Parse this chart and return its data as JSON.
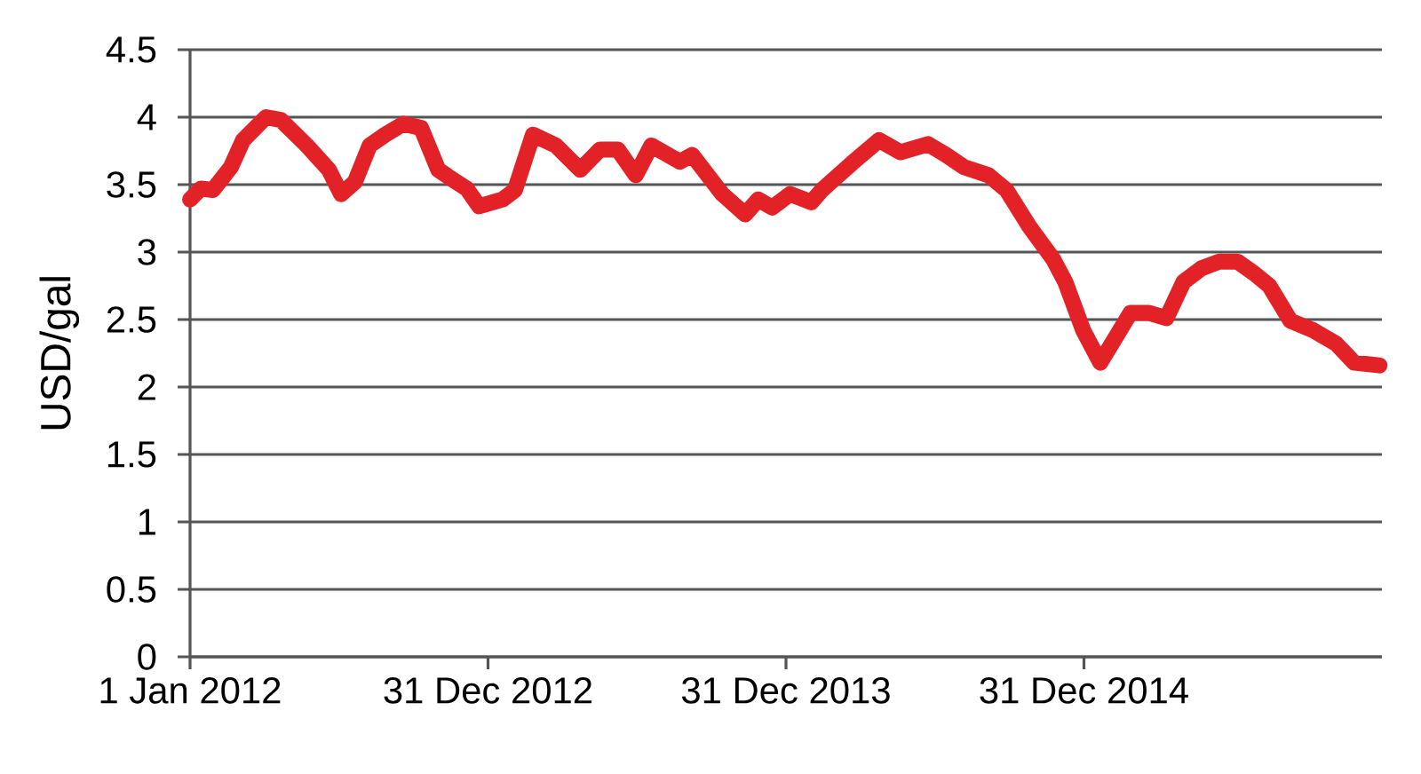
{
  "chart_data": {
    "type": "line",
    "ylabel": "USD/gal",
    "x": [
      "2012-01-01",
      "2012-01-14",
      "2012-01-29",
      "2012-02-20",
      "2012-03-06",
      "2012-04-03",
      "2012-04-21",
      "2012-05-23",
      "2012-06-19",
      "2012-07-04",
      "2012-07-21",
      "2012-08-08",
      "2012-08-27",
      "2012-09-18",
      "2012-10-10",
      "2012-10-31",
      "2012-11-22",
      "2012-12-05",
      "2012-12-20",
      "2013-01-18",
      "2013-02-02",
      "2013-02-24",
      "2013-03-24",
      "2013-04-23",
      "2013-05-17",
      "2013-06-08",
      "2013-06-30",
      "2013-07-19",
      "2013-08-23",
      "2013-09-07",
      "2013-10-14",
      "2013-11-11",
      "2013-11-27",
      "2013-12-14",
      "2014-01-05",
      "2014-01-31",
      "2014-02-13",
      "2014-03-22",
      "2014-04-24",
      "2014-05-20",
      "2014-06-23",
      "2014-07-15",
      "2014-08-06",
      "2014-09-05",
      "2014-09-27",
      "2014-10-25",
      "2014-11-23",
      "2014-12-08",
      "2014-12-30",
      "2015-01-20",
      "2015-02-26",
      "2015-03-20",
      "2015-04-11",
      "2015-05-02",
      "2015-05-24",
      "2015-06-15",
      "2015-07-07",
      "2015-07-28",
      "2015-08-15",
      "2015-09-10",
      "2015-10-08",
      "2015-11-05",
      "2015-11-27",
      "2015-12-28"
    ],
    "series": [
      {
        "color": "#e32228",
        "values": [
          3.39,
          3.47,
          3.46,
          3.63,
          3.83,
          4.0,
          3.98,
          3.79,
          3.61,
          3.43,
          3.52,
          3.79,
          3.87,
          3.95,
          3.92,
          3.61,
          3.52,
          3.47,
          3.34,
          3.39,
          3.46,
          3.87,
          3.79,
          3.61,
          3.76,
          3.76,
          3.57,
          3.79,
          3.67,
          3.72,
          3.43,
          3.28,
          3.39,
          3.33,
          3.43,
          3.37,
          3.46,
          3.66,
          3.83,
          3.74,
          3.8,
          3.72,
          3.63,
          3.57,
          3.46,
          3.19,
          2.95,
          2.78,
          2.42,
          2.18,
          2.55,
          2.55,
          2.51,
          2.78,
          2.88,
          2.93,
          2.93,
          2.84,
          2.75,
          2.49,
          2.42,
          2.32,
          2.18,
          2.16
        ]
      }
    ],
    "xlim": [
      "2012-01-01",
      "2015-12-31"
    ],
    "xticks": [
      {
        "value": "2012-01-01",
        "label": "1 Jan 2012"
      },
      {
        "value": "2012-12-31",
        "label": "31 Dec 2012"
      },
      {
        "value": "2013-12-31",
        "label": "31 Dec 2013"
      },
      {
        "value": "2014-12-31",
        "label": "31 Dec 2014"
      }
    ],
    "ylim": [
      0,
      4.5
    ],
    "yticks": [
      0,
      0.5,
      1,
      1.5,
      2,
      2.5,
      3,
      3.5,
      4,
      4.5
    ],
    "grid": "y"
  }
}
